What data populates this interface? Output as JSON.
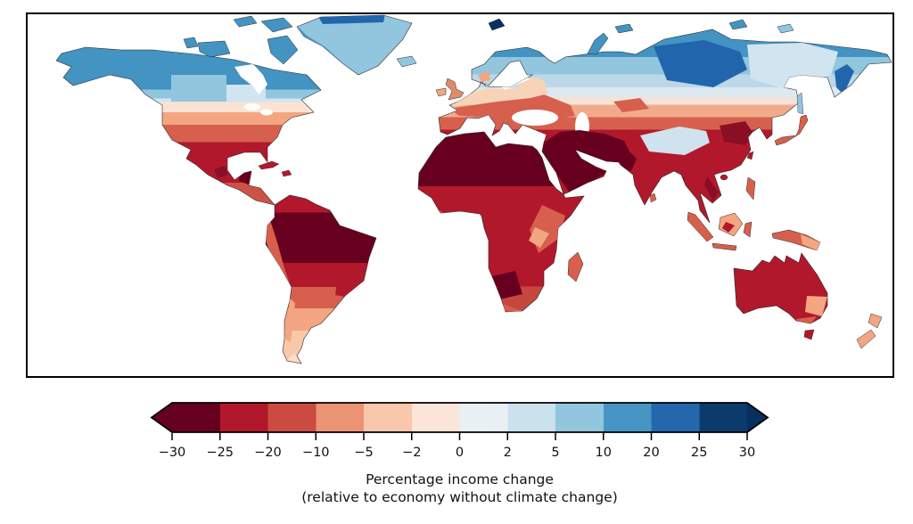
{
  "figure": {
    "caption_line1": "Percentage income change",
    "caption_line2": "(relative to economy without climate change)"
  },
  "colorbar": {
    "ticks": [
      "−30",
      "−25",
      "−20",
      "−10",
      "−5",
      "−2",
      "0",
      "2",
      "5",
      "10",
      "20",
      "25",
      "30"
    ],
    "boundaries": [
      -30,
      -25,
      -20,
      -10,
      -5,
      -2,
      0,
      2,
      5,
      10,
      20,
      25,
      30
    ],
    "segment_colors": [
      "#67001f",
      "#b2182b",
      "#cb4b42",
      "#ec9374",
      "#f9c7ac",
      "#fbe5d8",
      "#e9f0f4",
      "#cbe1ee",
      "#92c5de",
      "#4795c5",
      "#2467ac",
      "#0a3b6b"
    ],
    "arrow_left_color": "#67001f",
    "arrow_right_color": "#053061",
    "outline_color": "#000000"
  },
  "chart_data": {
    "type": "choropleth_map",
    "projection": "equirectangular, world extent",
    "legend_label": "Percentage income change (relative to economy without climate change)",
    "value_bins": [
      -30,
      -25,
      -20,
      -10,
      -5,
      -2,
      0,
      2,
      5,
      10,
      20,
      25,
      30
    ],
    "regions": [
      {
        "region": "Canada / Alaska",
        "value": "+5 to +10"
      },
      {
        "region": "Northern Siberia (Russia)",
        "value": "+10 to +20"
      },
      {
        "region": "Eastern Siberia",
        "value": "+2 to +5"
      },
      {
        "region": "Scandinavia / Greenland",
        "value": "+5 to +10"
      },
      {
        "region": "Svalbard",
        "value": "+25 to +30"
      },
      {
        "region": "Northern US states",
        "value": "-2 to 0"
      },
      {
        "region": "Central US",
        "value": "-5 to -10"
      },
      {
        "region": "Southern US",
        "value": "-10 to -20"
      },
      {
        "region": "Mexico / Central America / Caribbean",
        "value": "-20 to -30"
      },
      {
        "region": "Amazon basin (Brazil)",
        "value": "below -30"
      },
      {
        "region": "Andes / southern Brazil",
        "value": "-20 to -25"
      },
      {
        "region": "Argentina / Patagonia",
        "value": "-5 to -10"
      },
      {
        "region": "UK / Ireland",
        "value": "-10 to -20"
      },
      {
        "region": "Western & Central Europe",
        "value": "-10 to -20"
      },
      {
        "region": "Mediterranean Europe",
        "value": "-20 to -25"
      },
      {
        "region": "Sahara / North Africa",
        "value": "below -30"
      },
      {
        "region": "Sub-Saharan Africa",
        "value": "-20 to -25"
      },
      {
        "region": "East African highlands",
        "value": "-10 to -20"
      },
      {
        "region": "Middle East / Arabian Peninsula / Iran",
        "value": "below -30"
      },
      {
        "region": "Central Asia",
        "value": "-5 to -10"
      },
      {
        "region": "Tibetan plateau",
        "value": "0 to +2"
      },
      {
        "region": "India",
        "value": "-20 to -25"
      },
      {
        "region": "Northeast China plain",
        "value": "-25 to -30"
      },
      {
        "region": "Southern China / Southeast Asia",
        "value": "-20 to -25"
      },
      {
        "region": "Indonesia / New Guinea",
        "value": "-10 to -20"
      },
      {
        "region": "Japan",
        "value": "-10 to -20"
      },
      {
        "region": "Australia",
        "value": "-20 to -25"
      },
      {
        "region": "Southeast Australia / New Zealand",
        "value": "-5 to -10"
      }
    ]
  },
  "map": {
    "frame_color": "#000000",
    "ocean_color": "#ffffff",
    "coastline_color": "#2a2a2a",
    "fills": {
      "ocean": "#ffffff",
      "greenland": "#92c5de",
      "greenland_top": "#2166ac",
      "greenland_west": "#4393c3",
      "arctic_canada": "#4393c3",
      "hudson_bay": "#ffffff",
      "lakes": "#ffffff",
      "sw_canada_band": "#92c5de",
      "s_canada_band": "#d1e5f0",
      "yucatan_dark": "#67001f",
      "mexico_dark": "#8a0f26",
      "cuba": "#b2182b",
      "hispaniola": "#b2182b",
      "andes_strip": "#d6604d",
      "chile_strip": "#f4a582",
      "s_brazil_patch": "#b2182b",
      "tierra_del_fuego": "#fddbc7",
      "w_africa_coast": "#d6604d",
      "e_africa_blob": "#d6604d",
      "e_africa_light": "#f4a582",
      "botswana_dark": "#67001f",
      "s_africa_coast": "#d6604d",
      "madagascar": "#d6604d",
      "uk": "#e18a68",
      "ireland": "#f4a582",
      "iceland": "#92c5de",
      "svalbard": "#053061",
      "novaya_zemlya": "#4393c3",
      "franz_josef": "#4393c3",
      "severnaya": "#4393c3",
      "new_siberian": "#92c5de",
      "euro_red": "#d6604d",
      "euro_peach": "#f7d3b8",
      "oslo_patch": "#f4a582",
      "baltic_sea": "#ffffff",
      "black_sea": "#ffffff",
      "caspian_sea": "#ffffff",
      "siberia_dark": "#2166ac",
      "yakutia_pale": "#d1e5f0",
      "kamchatka_dark": "#2166ac",
      "sakhalin": "#92c5de",
      "tibet_pale": "#cfe2ee",
      "mideast_dark": "#67001f",
      "kazakh_red": "#d6604d",
      "ne_china_dark": "#8a0f26",
      "indochina_dark": "#8a0f26",
      "myanmar_dark": "#8a0f26",
      "japan": "#d6604d",
      "taiwan": "#b2182b",
      "hainan": "#b2182b",
      "sri_lanka": "#d6604d",
      "sumatra": "#d6604d",
      "java": "#d6604d",
      "borneo": "#f4a582",
      "borneo_patch": "#b2182b",
      "sulawesi": "#d6604d",
      "philippines": "#d6604d",
      "new_guinea": "#d6604d",
      "png_east": "#f4a582",
      "australia": "#b2182b",
      "nsw_patch": "#f4a582",
      "victoria_patch": "#d6604d",
      "tasmania": "#b2182b",
      "nz": "#f4a582"
    },
    "gradients": {
      "north_america": [
        [
          "0",
          "#4393c3"
        ],
        [
          "0.269",
          "#4393c3"
        ],
        [
          "0.269",
          "#92c5de"
        ],
        [
          "0.324",
          "#92c5de"
        ],
        [
          "0.324",
          "#d1e5f0"
        ],
        [
          "0.348",
          "#d1e5f0"
        ],
        [
          "0.348",
          "#fbe3d3"
        ],
        [
          "0.412",
          "#fbe3d3"
        ],
        [
          "0.412",
          "#f4a582"
        ],
        [
          "0.492",
          "#f4a582"
        ],
        [
          "0.492",
          "#d6604d"
        ],
        [
          "0.603",
          "#d6604d"
        ],
        [
          "0.603",
          "#b2182b"
        ],
        [
          "0.858",
          "#b2182b"
        ],
        [
          "0.858",
          "#cf5246"
        ],
        [
          "1",
          "#cf5246"
        ]
      ],
      "south_america": [
        [
          "0",
          "#b2182b"
        ],
        [
          "0.104",
          "#b2182b"
        ],
        [
          "0.104",
          "#67001f"
        ],
        [
          "0.403",
          "#67001f"
        ],
        [
          "0.403",
          "#b2182b"
        ],
        [
          "0.544",
          "#b2182b"
        ],
        [
          "0.544",
          "#d6604d"
        ],
        [
          "0.671",
          "#d6604d"
        ],
        [
          "0.671",
          "#f4a582"
        ],
        [
          "0.805",
          "#f4a582"
        ],
        [
          "0.805",
          "#f8c9a9"
        ],
        [
          "1",
          "#f8c9a9"
        ]
      ],
      "africa": [
        [
          "0",
          "#67001f"
        ],
        [
          "0.302",
          "#67001f"
        ],
        [
          "0.302",
          "#b2182b"
        ],
        [
          "0.86",
          "#b2182b"
        ],
        [
          "0.86",
          "#c6473d"
        ],
        [
          "1",
          "#c6473d"
        ]
      ],
      "eurasia": [
        [
          "0",
          "#4393c3"
        ],
        [
          "0.142",
          "#4393c3"
        ],
        [
          "0.142",
          "#92c5de"
        ],
        [
          "0.233",
          "#92c5de"
        ],
        [
          "0.233",
          "#bcd8e8"
        ],
        [
          "0.299",
          "#bcd8e8"
        ],
        [
          "0.299",
          "#dde9f1"
        ],
        [
          "0.35",
          "#dde9f1"
        ],
        [
          "0.35",
          "#f6e3d6"
        ],
        [
          "0.389",
          "#f6e3d6"
        ],
        [
          "0.389",
          "#f2ab8a"
        ],
        [
          "0.454",
          "#f2ab8a"
        ],
        [
          "0.454",
          "#d6604d"
        ],
        [
          "0.519",
          "#d6604d"
        ],
        [
          "0.519",
          "#b2182b"
        ],
        [
          "1",
          "#b2182b"
        ]
      ]
    }
  }
}
